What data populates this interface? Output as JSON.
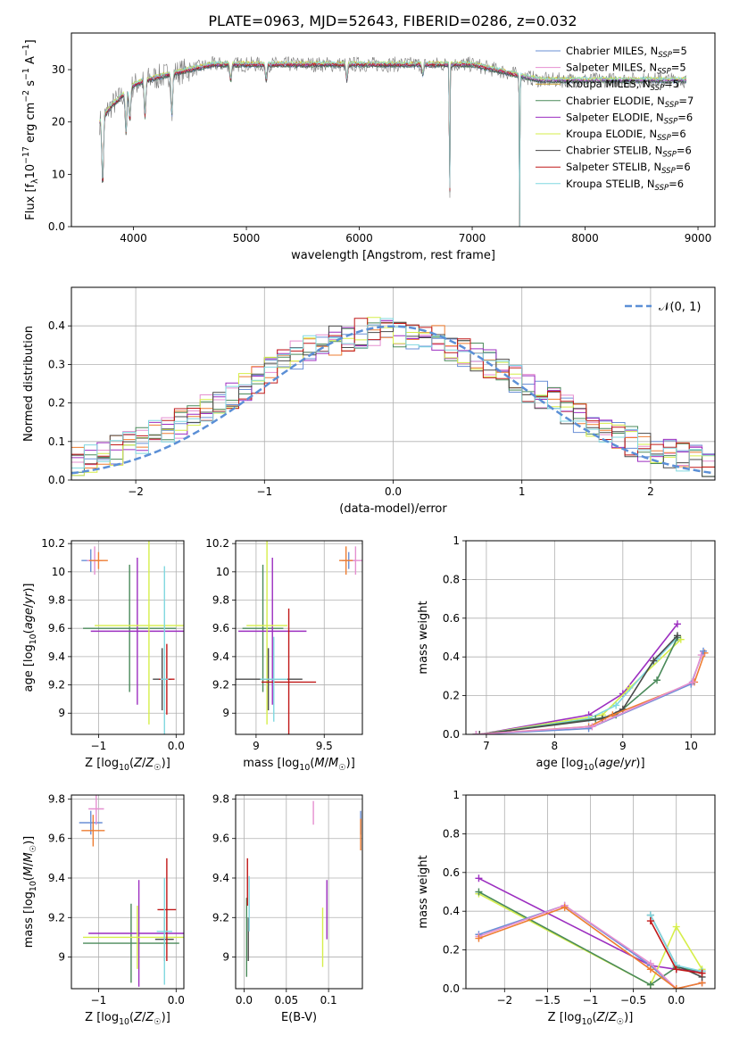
{
  "title": "PLATE=0963, MJD=52643, FIBERID=0286, z=0.032",
  "colors": {
    "Chabrier MILES": "#6a8fd6",
    "Salpeter MILES": "#e58fd0",
    "Kroupa MILES": "#c8a032",
    "Chabrier ELODIE": "#4a8a5a",
    "Salpeter ELODIE": "#9c2ec0",
    "Kroupa ELODIE": "#d6ee4a",
    "Chabrier STELIB": "#4a4a4a",
    "Salpeter STELIB": "#c01818",
    "Kroupa STELIB": "#80d8e0",
    "orange": "#ee7d32",
    "normal_curve": "#5b8fd6",
    "grid": "#b0b0b0"
  },
  "chart_data": [
    {
      "id": "spectrum",
      "type": "line",
      "title": "PLATE=0963, MJD=52643, FIBERID=0286, z=0.032",
      "xlabel": "wavelength [Angstrom, rest frame]",
      "ylabel": "Flux [f$_\\lambda$10$^{-17}$ erg cm$^{-2}$ s$^{-1}$ A$^{-1}$]",
      "xlim": [
        3450,
        9150
      ],
      "ylim": [
        0,
        37
      ],
      "xticks": [
        4000,
        5000,
        6000,
        7000,
        8000,
        9000
      ],
      "yticks": [
        0,
        10,
        20,
        30
      ],
      "legend_position": "top-right",
      "legend": [
        {
          "label": "Chabrier MILES, N",
          "sub": "SSP",
          "suffix": "=5",
          "color": "#6a8fd6"
        },
        {
          "label": "Salpeter MILES, N",
          "sub": "SSP",
          "suffix": "=5",
          "color": "#e58fd0"
        },
        {
          "label": "Kroupa MILES, N",
          "sub": "SSP",
          "suffix": "=5",
          "color": "#c8a032"
        },
        {
          "label": "Chabrier ELODIE, N",
          "sub": "SSP",
          "suffix": "=7",
          "color": "#4a8a5a"
        },
        {
          "label": "Salpeter ELODIE, N",
          "sub": "SSP",
          "suffix": "=6",
          "color": "#9c2ec0"
        },
        {
          "label": "Kroupa ELODIE, N",
          "sub": "SSP",
          "suffix": "=6",
          "color": "#d6ee4a"
        },
        {
          "label": "Chabrier STELIB, N",
          "sub": "SSP",
          "suffix": "=6",
          "color": "#4a4a4a"
        },
        {
          "label": "Salpeter STELIB, N",
          "sub": "SSP",
          "suffix": "=6",
          "color": "#c01818"
        },
        {
          "label": "Kroupa STELIB, N",
          "sub": "SSP",
          "suffix": "=6",
          "color": "#80d8e0"
        }
      ],
      "continuum": [
        [
          3700,
          20
        ],
        [
          3800,
          23
        ],
        [
          3900,
          25
        ],
        [
          4000,
          27
        ],
        [
          4100,
          28
        ],
        [
          4300,
          29
        ],
        [
          4500,
          30
        ],
        [
          4700,
          31
        ],
        [
          5000,
          31
        ],
        [
          5500,
          31
        ],
        [
          6000,
          31
        ],
        [
          6500,
          31
        ],
        [
          6800,
          31
        ],
        [
          7000,
          31
        ],
        [
          7200,
          30
        ],
        [
          7400,
          29
        ],
        [
          7600,
          28
        ],
        [
          8000,
          28
        ],
        [
          8500,
          28
        ],
        [
          8900,
          28
        ]
      ],
      "features": [
        [
          3727,
          -13
        ],
        [
          3934,
          -8
        ],
        [
          3968,
          -6
        ],
        [
          4102,
          -7
        ],
        [
          4340,
          -8
        ],
        [
          4861,
          -3
        ],
        [
          5175,
          -3
        ],
        [
          5890,
          -3
        ],
        [
          6563,
          -2
        ],
        [
          6800,
          -31
        ],
        [
          7420,
          -30
        ]
      ]
    },
    {
      "id": "residuals",
      "type": "histogram",
      "xlabel": "(data-model)/error",
      "ylabel": "Normed distribution",
      "xlim": [
        -2.5,
        2.5
      ],
      "ylim": [
        0,
        0.5
      ],
      "xticks": [
        -2,
        -1,
        0,
        1,
        2
      ],
      "yticks": [
        0.0,
        0.1,
        0.2,
        0.3,
        0.4
      ],
      "legend_position": "top-right",
      "reference": {
        "label": "N(0, 1)",
        "mean": 0,
        "sigma": 1
      }
    },
    {
      "id": "age-vs-Z",
      "type": "scatter",
      "xlabel": "Z [log10(Z/Z☉)]",
      "ylabel": "age  [log10(age/yr)]",
      "xlim": [
        -1.35,
        0.1
      ],
      "ylim": [
        8.85,
        10.22
      ],
      "xticks": [
        -1,
        0
      ],
      "yticks": [
        9.0,
        9.2,
        9.4,
        9.6,
        9.8,
        10.0,
        10.2
      ],
      "points": [
        {
          "series": "Chabrier MILES",
          "x": -1.1,
          "y": 10.08,
          "xerr": 0.12,
          "yerr": 0.08
        },
        {
          "series": "Salpeter MILES",
          "x": -1.05,
          "y": 10.08,
          "xerr": 0.1,
          "yerr": 0.1
        },
        {
          "series": "orange",
          "x": -1.0,
          "y": 10.08,
          "xerr": 0.12,
          "yerr": 0.06
        },
        {
          "series": "Chabrier ELODIE",
          "x": -0.6,
          "y": 9.6,
          "xerr": 0.6,
          "yerr": 0.45
        },
        {
          "series": "Salpeter ELODIE",
          "x": -0.5,
          "y": 9.58,
          "xerr": 0.6,
          "yerr": 0.52
        },
        {
          "series": "Kroupa ELODIE",
          "x": -0.35,
          "y": 9.62,
          "xerr": 0.7,
          "yerr": 0.7
        },
        {
          "series": "Chabrier STELIB",
          "x": -0.18,
          "y": 9.24,
          "xerr": 0.12,
          "yerr": 0.22
        },
        {
          "series": "Salpeter STELIB",
          "x": -0.12,
          "y": 9.24,
          "xerr": 0.1,
          "yerr": 0.25
        },
        {
          "series": "Kroupa STELIB",
          "x": -0.15,
          "y": 9.24,
          "xerr": 0.05,
          "yerr": 0.8
        }
      ]
    },
    {
      "id": "age-vs-mass",
      "type": "scatter",
      "xlabel": "mass [log10(M/M☉)]",
      "ylabel": "",
      "xlim": [
        8.85,
        9.78
      ],
      "ylim": [
        8.85,
        10.22
      ],
      "xticks": [
        9.0,
        9.5
      ],
      "yticks": [
        9.0,
        9.2,
        9.4,
        9.6,
        9.8,
        10.0,
        10.2
      ],
      "points": [
        {
          "series": "Chabrier MILES",
          "x": 9.68,
          "y": 10.08,
          "xerr": 0.05,
          "yerr": 0.06
        },
        {
          "series": "Salpeter MILES",
          "x": 9.73,
          "y": 10.08,
          "xerr": 0.05,
          "yerr": 0.1
        },
        {
          "series": "orange",
          "x": 9.66,
          "y": 10.08,
          "xerr": 0.05,
          "yerr": 0.1
        },
        {
          "series": "Chabrier ELODIE",
          "x": 9.05,
          "y": 9.6,
          "xerr": 0.15,
          "yerr": 0.45
        },
        {
          "series": "Salpeter ELODIE",
          "x": 9.12,
          "y": 9.58,
          "xerr": 0.25,
          "yerr": 0.52
        },
        {
          "series": "Kroupa ELODIE",
          "x": 9.08,
          "y": 9.62,
          "xerr": 0.15,
          "yerr": 0.7
        },
        {
          "series": "Chabrier STELIB",
          "x": 9.09,
          "y": 9.24,
          "xerr": 0.25,
          "yerr": 0.22
        },
        {
          "series": "Salpeter STELIB",
          "x": 9.24,
          "y": 9.22,
          "xerr": 0.2,
          "yerr": 0.52
        },
        {
          "series": "Kroupa STELIB",
          "x": 9.13,
          "y": 9.24,
          "xerr": 0.1,
          "yerr": 0.3
        }
      ]
    },
    {
      "id": "massweight-vs-age",
      "type": "line",
      "xlabel": "age  [log10(age/yr)]",
      "ylabel": "mass weight",
      "xlim": [
        6.7,
        10.35
      ],
      "ylim": [
        0,
        1.0
      ],
      "xticks": [
        7,
        8,
        9,
        10
      ],
      "yticks": [
        0.0,
        0.2,
        0.4,
        0.6,
        0.8,
        1.0
      ],
      "series": [
        {
          "name": "Salpeter ELODIE",
          "x": [
            6.9,
            8.5,
            9.0,
            9.8
          ],
          "y": [
            0.0,
            0.1,
            0.21,
            0.57
          ]
        },
        {
          "name": "Kroupa ELODIE",
          "x": [
            6.9,
            8.7,
            9.1,
            9.85
          ],
          "y": [
            0.0,
            0.1,
            0.24,
            0.49
          ]
        },
        {
          "name": "Kroupa STELIB",
          "x": [
            6.9,
            8.5,
            8.9,
            9.5,
            9.8
          ],
          "y": [
            0.0,
            0.08,
            0.15,
            0.39,
            0.5
          ]
        },
        {
          "name": "Chabrier ELODIE",
          "x": [
            6.9,
            8.6,
            8.9,
            9.5,
            9.8
          ],
          "y": [
            0.0,
            0.08,
            0.1,
            0.28,
            0.5
          ]
        },
        {
          "name": "Chabrier STELIB",
          "x": [
            6.9,
            8.7,
            9.0,
            9.45,
            9.8
          ],
          "y": [
            0.0,
            0.08,
            0.13,
            0.38,
            0.51
          ]
        },
        {
          "name": "orange",
          "x": [
            6.85,
            8.5,
            8.85,
            10.05,
            10.2
          ],
          "y": [
            0.0,
            0.04,
            0.1,
            0.27,
            0.42
          ]
        },
        {
          "name": "Chabrier MILES",
          "x": [
            6.85,
            8.5,
            10.0,
            10.18
          ],
          "y": [
            0.0,
            0.03,
            0.26,
            0.43
          ]
        },
        {
          "name": "Salpeter MILES",
          "x": [
            6.85,
            8.55,
            10.02,
            10.15
          ],
          "y": [
            0.0,
            0.04,
            0.27,
            0.41
          ]
        }
      ]
    },
    {
      "id": "mass-vs-Z",
      "type": "scatter",
      "xlabel": "Z [log10(Z/Z☉)]",
      "ylabel": "mass [log10(M/M☉)]",
      "xlim": [
        -1.35,
        0.1
      ],
      "ylim": [
        8.84,
        9.82
      ],
      "xticks": [
        -1,
        0
      ],
      "yticks": [
        9.0,
        9.2,
        9.4,
        9.6,
        9.8
      ],
      "points": [
        {
          "series": "Chabrier MILES",
          "x": -1.1,
          "y": 9.68,
          "xerr": 0.15,
          "yerr": 0.06
        },
        {
          "series": "Salpeter MILES",
          "x": -1.03,
          "y": 9.75,
          "xerr": 0.1,
          "yerr": 0.08
        },
        {
          "series": "orange",
          "x": -1.07,
          "y": 9.64,
          "xerr": 0.15,
          "yerr": 0.08
        },
        {
          "series": "Chabrier ELODIE",
          "x": -0.58,
          "y": 9.07,
          "xerr": 0.62,
          "yerr": 0.2
        },
        {
          "series": "Salpeter ELODIE",
          "x": -0.48,
          "y": 9.12,
          "xerr": 0.65,
          "yerr": 0.27
        },
        {
          "series": "Kroupa ELODIE",
          "x": -0.5,
          "y": 9.1,
          "xerr": 0.7,
          "yerr": 0.16
        },
        {
          "series": "Chabrier STELIB",
          "x": -0.15,
          "y": 9.09,
          "xerr": 0.12,
          "yerr": 0.11
        },
        {
          "series": "Salpeter STELIB",
          "x": -0.12,
          "y": 9.24,
          "xerr": 0.12,
          "yerr": 0.26
        },
        {
          "series": "Kroupa STELIB",
          "x": -0.15,
          "y": 9.13,
          "xerr": 0.1,
          "yerr": 0.27
        }
      ]
    },
    {
      "id": "mass-vs-EBV",
      "type": "scatter",
      "xlabel": "E(B-V)",
      "ylabel": "",
      "xlim": [
        -0.01,
        0.14
      ],
      "ylim": [
        8.84,
        9.82
      ],
      "xticks": [
        0.0,
        0.05,
        0.1
      ],
      "yticks": [
        9.0,
        9.2,
        9.4,
        9.6,
        9.8
      ],
      "points": [
        {
          "series": "Chabrier MILES",
          "x": 0.138,
          "y": 9.68,
          "yerr": 0.06
        },
        {
          "series": "Salpeter MILES",
          "x": 0.082,
          "y": 9.73,
          "yerr": 0.06
        },
        {
          "series": "orange",
          "x": 0.138,
          "y": 9.62,
          "yerr": 0.08
        },
        {
          "series": "Chabrier ELODIE",
          "x": 0.003,
          "y": 9.1,
          "yerr": 0.2
        },
        {
          "series": "Salpeter ELODIE",
          "x": 0.098,
          "y": 9.24,
          "yerr": 0.15
        },
        {
          "series": "Kroupa ELODIE",
          "x": 0.093,
          "y": 9.1,
          "yerr": 0.15
        },
        {
          "series": "Chabrier STELIB",
          "x": 0.005,
          "y": 9.09,
          "yerr": 0.11
        },
        {
          "series": "Salpeter STELIB",
          "x": 0.004,
          "y": 9.38,
          "yerr": 0.12
        },
        {
          "series": "Kroupa STELIB",
          "x": 0.006,
          "y": 9.27,
          "yerr": 0.14
        }
      ]
    },
    {
      "id": "massweight-vs-Z",
      "type": "line",
      "xlabel": "Z [log10(Z/Z☉)]",
      "ylabel": "mass weight",
      "xlim": [
        -2.45,
        0.45
      ],
      "ylim": [
        0,
        1.0
      ],
      "xticks": [
        -2.0,
        -1.5,
        -1.0,
        -0.5,
        0.0
      ],
      "yticks": [
        0.0,
        0.2,
        0.4,
        0.6,
        0.8,
        1.0
      ],
      "series": [
        {
          "name": "Salpeter ELODIE",
          "x": [
            -2.3,
            -0.3,
            0.0,
            0.3
          ],
          "y": [
            0.57,
            0.12,
            0.1,
            0.09
          ]
        },
        {
          "name": "Kroupa ELODIE",
          "x": [
            -2.3,
            -0.3,
            0.0,
            0.3
          ],
          "y": [
            0.49,
            0.02,
            0.32,
            0.1
          ]
        },
        {
          "name": "Chabrier ELODIE",
          "x": [
            -2.3,
            -0.3,
            0.0,
            0.3
          ],
          "y": [
            0.5,
            0.02,
            0.11,
            0.09
          ]
        },
        {
          "name": "Chabrier MILES",
          "x": [
            -2.3,
            -1.3,
            -0.3,
            0.0,
            0.3
          ],
          "y": [
            0.28,
            0.43,
            0.12,
            0.0,
            0.03
          ]
        },
        {
          "name": "Salpeter MILES",
          "x": [
            -2.3,
            -1.3,
            -0.3,
            0.0,
            0.3
          ],
          "y": [
            0.27,
            0.43,
            0.13,
            0.0,
            0.03
          ]
        },
        {
          "name": "orange",
          "x": [
            -2.3,
            -1.3,
            -0.3,
            0.0,
            0.3
          ],
          "y": [
            0.26,
            0.42,
            0.1,
            0.0,
            0.03
          ]
        },
        {
          "name": "Chabrier STELIB",
          "x": [
            -0.3,
            0.0,
            0.3
          ],
          "y": [
            0.38,
            0.12,
            0.06
          ]
        },
        {
          "name": "Kroupa STELIB",
          "x": [
            -0.3,
            0.0,
            0.3
          ],
          "y": [
            0.38,
            0.12,
            0.09
          ]
        },
        {
          "name": "Salpeter STELIB",
          "x": [
            -0.3,
            0.0,
            0.3
          ],
          "y": [
            0.35,
            0.1,
            0.08
          ]
        }
      ]
    }
  ]
}
